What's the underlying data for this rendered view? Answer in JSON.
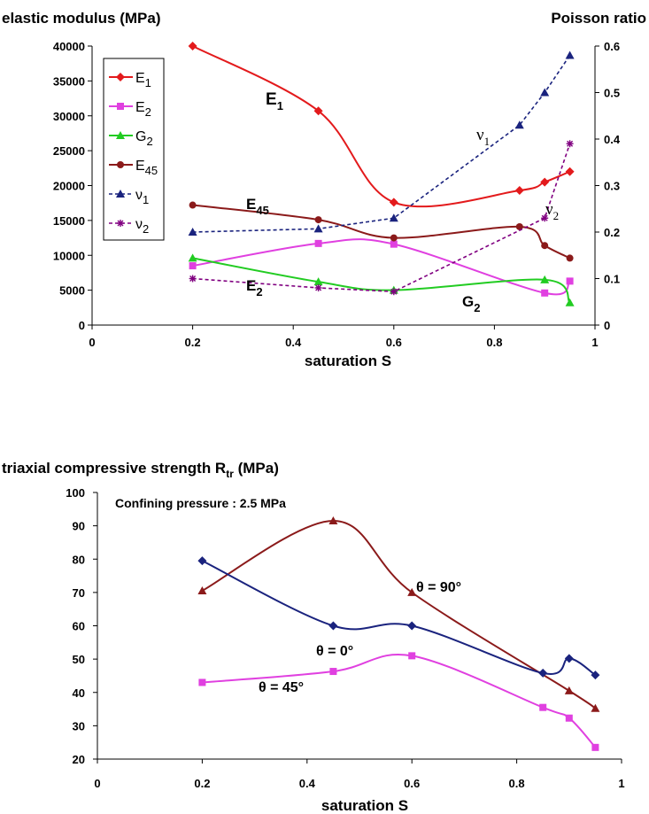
{
  "chart_data": [
    {
      "type": "line",
      "title_left": "elastic modulus (MPa)",
      "title_right": "Poisson ratio",
      "xlabel": "saturation S",
      "xlim": [
        0,
        1
      ],
      "xticks": [
        0,
        0.2,
        0.4,
        0.6,
        0.8,
        1
      ],
      "ylim": [
        0,
        40000
      ],
      "yticks": [
        0,
        5000,
        10000,
        15000,
        20000,
        25000,
        30000,
        35000,
        40000
      ],
      "y2lim": [
        0,
        0.6
      ],
      "y2ticks": [
        0,
        0.1,
        0.2,
        0.3,
        0.4,
        0.5,
        0.6
      ],
      "legend_position": "top-left",
      "series": [
        {
          "name": "E1",
          "label_main": "E",
          "label_sub": "1",
          "axis": "left",
          "color": "#e31a1c",
          "marker": "diamond",
          "style": "smooth",
          "x": [
            0.2,
            0.45,
            0.6,
            0.85,
            0.9,
            0.95
          ],
          "y": [
            40000,
            30700,
            17600,
            19300,
            20500,
            22000
          ]
        },
        {
          "name": "E2",
          "label_main": "E",
          "label_sub": "2",
          "axis": "left",
          "color": "#e040e0",
          "marker": "square",
          "style": "smooth",
          "x": [
            0.2,
            0.45,
            0.6,
            0.9,
            0.95
          ],
          "y": [
            8500,
            11700,
            11600,
            4600,
            6300
          ]
        },
        {
          "name": "G2",
          "label_main": "G",
          "label_sub": "2",
          "axis": "left",
          "color": "#22cc22",
          "marker": "triangle",
          "style": "smooth",
          "x": [
            0.2,
            0.45,
            0.6,
            0.9,
            0.95
          ],
          "y": [
            9600,
            6200,
            5000,
            6500,
            3200
          ]
        },
        {
          "name": "E45",
          "label_main": "E",
          "label_sub": "45",
          "axis": "left",
          "color": "#8b1a1a",
          "marker": "circle",
          "style": "smooth",
          "x": [
            0.2,
            0.45,
            0.6,
            0.85,
            0.9,
            0.95
          ],
          "y": [
            17200,
            15100,
            12500,
            14100,
            11400,
            9600
          ]
        },
        {
          "name": "ν1",
          "label_main": "ν",
          "label_sub": "1",
          "axis": "right",
          "color": "#1a237e",
          "marker": "triangle",
          "style": "dashed",
          "x": [
            0.2,
            0.45,
            0.6,
            0.85,
            0.9,
            0.95
          ],
          "y": [
            0.2,
            0.207,
            0.23,
            0.43,
            0.5,
            0.58
          ]
        },
        {
          "name": "ν2",
          "label_main": "ν",
          "label_sub": "2",
          "axis": "right",
          "color": "#800080",
          "marker": "star",
          "style": "dashed",
          "x": [
            0.2,
            0.45,
            0.6,
            0.9,
            0.95
          ],
          "y": [
            0.1,
            0.08,
            0.072,
            0.23,
            0.39
          ]
        }
      ],
      "annotations": [
        {
          "main": "E",
          "sub": "1"
        },
        {
          "main": "E",
          "sub": "45"
        },
        {
          "main": "E",
          "sub": "2"
        },
        {
          "main": "G",
          "sub": "2"
        },
        {
          "main": "ν",
          "sub": "1"
        },
        {
          "main": "ν",
          "sub": "2"
        }
      ]
    },
    {
      "type": "line",
      "title_main": "triaxial compressive strength R",
      "title_sub": "tr",
      "title_tail": " (MPa)",
      "xlabel": "saturation S",
      "xlim": [
        0,
        1
      ],
      "xticks": [
        0,
        0.2,
        0.4,
        0.6,
        0.8,
        1
      ],
      "ylim": [
        20,
        100
      ],
      "yticks": [
        20,
        30,
        40,
        50,
        60,
        70,
        80,
        90,
        100
      ],
      "note": "Confining pressure : 2.5 MPa",
      "series": [
        {
          "name": "θ = 90°",
          "color": "#8b1a1a",
          "marker": "triangle",
          "x": [
            0.2,
            0.45,
            0.6,
            0.9,
            0.95
          ],
          "y": [
            70.5,
            91.5,
            70,
            40.5,
            35.2
          ]
        },
        {
          "name": "θ = 0°",
          "color": "#1a237e",
          "marker": "diamond",
          "x": [
            0.2,
            0.45,
            0.6,
            0.85,
            0.9,
            0.95
          ],
          "y": [
            79.5,
            60,
            60,
            45.8,
            50.2,
            45.2
          ]
        },
        {
          "name": "θ = 45°",
          "color": "#e040e0",
          "marker": "square",
          "x": [
            0.2,
            0.45,
            0.6,
            0.85,
            0.9,
            0.95
          ],
          "y": [
            43,
            46.3,
            51,
            35.5,
            32.3,
            23.5
          ]
        }
      ]
    }
  ]
}
